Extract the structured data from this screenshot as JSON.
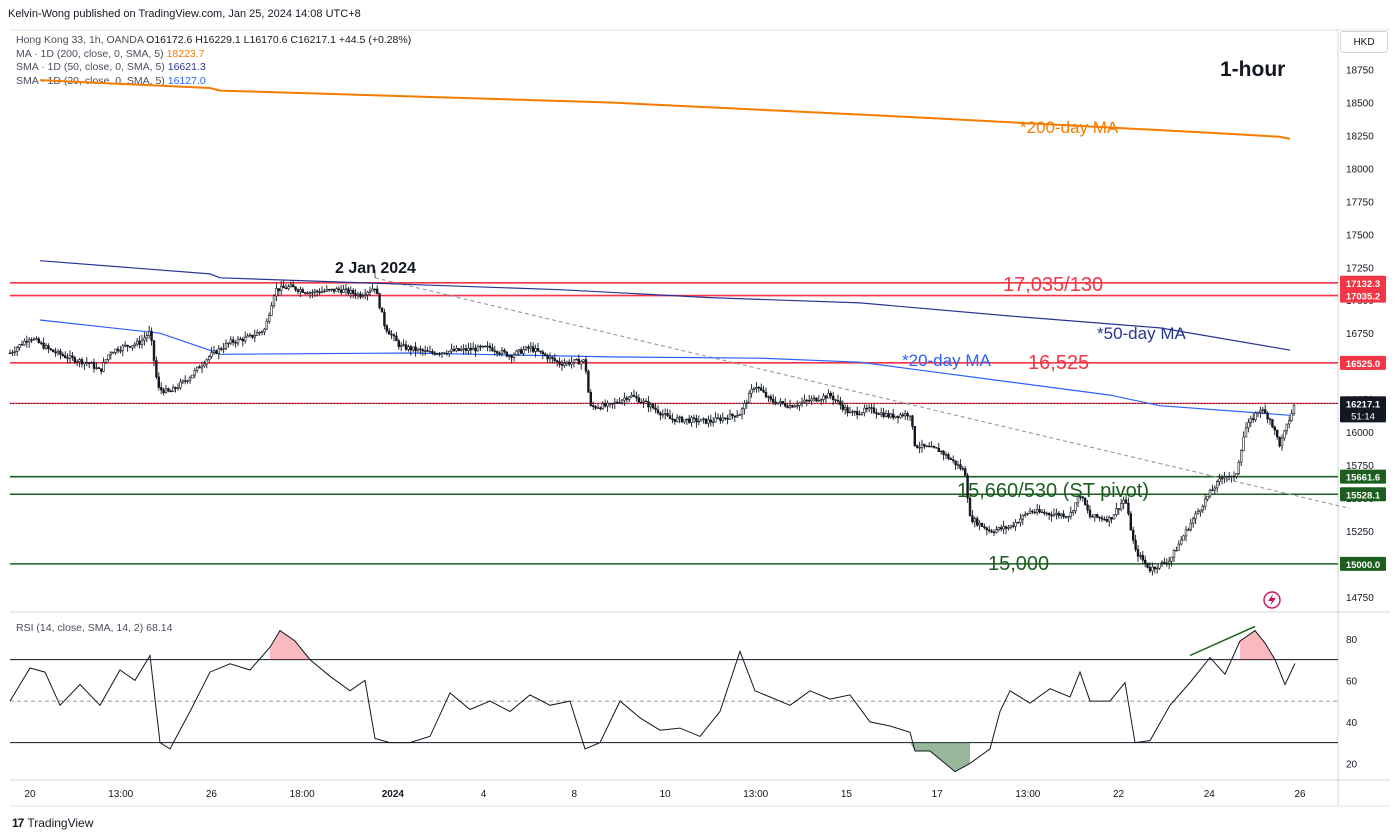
{
  "header": {
    "publisher": "Kelvin-Wong published on TradingView.com, Jan 25, 2024 14:08 UTC+8",
    "currency": "HKD",
    "timeframe_label": "1-hour"
  },
  "legend": {
    "instrument": "Hong Kong 33, 1h, OANDA",
    "ohlc": "O16172.6  H16229.1  L16170.6  C16217.1  +44.5 (+0.28%)",
    "ma200_label": "MA · 1D (200, close, 0, SMA, 5)",
    "ma200_value": "18223.7",
    "ma50_label": "SMA · 1D (50, close, 0, SMA, 5)",
    "ma50_value": "16621.3",
    "ma20_label": "SMA · 1D (20, close, 0, SMA, 5)",
    "ma20_value": "16127.0",
    "rsi_label": "RSI (14, close, SMA, 14, 2)",
    "rsi_value": "68.14"
  },
  "footer": {
    "brand": "TradingView"
  },
  "colors": {
    "orange": "#f57c00",
    "navy": "#283593",
    "blue": "#2962ff",
    "red": "#f23645",
    "green": "#1b5e20",
    "candle": "#131722",
    "rsi": "#131722"
  },
  "chart_data": [
    {
      "type": "candlestick",
      "title": "Hong Kong 33, 1h, OANDA",
      "ylim": [
        14650,
        19050
      ],
      "y_ticks": [
        14750,
        15000,
        15250,
        15500,
        15750,
        16000,
        16250,
        16500,
        16750,
        17000,
        17250,
        17500,
        17750,
        18000,
        18250,
        18500,
        18750
      ],
      "x_ticks": [
        "20",
        "13:00",
        "26",
        "18:00",
        "2024",
        "4",
        "8",
        "10",
        "13:00",
        "15",
        "17",
        "13:00",
        "22",
        "24",
        "26"
      ],
      "price_path": [
        [
          0,
          16600
        ],
        [
          0.02,
          16720
        ],
        [
          0.04,
          16620
        ],
        [
          0.06,
          16560
        ],
        [
          0.08,
          16520
        ],
        [
          0.09,
          16460
        ],
        [
          0.1,
          16610
        ],
        [
          0.115,
          16650
        ],
        [
          0.13,
          16680
        ],
        [
          0.14,
          16760
        ],
        [
          0.148,
          16330
        ],
        [
          0.16,
          16300
        ],
        [
          0.18,
          16420
        ],
        [
          0.2,
          16580
        ],
        [
          0.22,
          16680
        ],
        [
          0.24,
          16720
        ],
        [
          0.255,
          16780
        ],
        [
          0.265,
          17080
        ],
        [
          0.28,
          17100
        ],
        [
          0.3,
          17060
        ],
        [
          0.33,
          17080
        ],
        [
          0.35,
          17040
        ],
        [
          0.365,
          17100
        ],
        [
          0.375,
          16800
        ],
        [
          0.39,
          16650
        ],
        [
          0.42,
          16600
        ],
        [
          0.45,
          16620
        ],
        [
          0.48,
          16640
        ],
        [
          0.5,
          16580
        ],
        [
          0.52,
          16640
        ],
        [
          0.55,
          16520
        ],
        [
          0.575,
          16540
        ],
        [
          0.58,
          16190
        ],
        [
          0.6,
          16200
        ],
        [
          0.62,
          16280
        ],
        [
          0.64,
          16200
        ],
        [
          0.66,
          16100
        ],
        [
          0.7,
          16080
        ],
        [
          0.73,
          16140
        ],
        [
          0.745,
          16360
        ],
        [
          0.76,
          16240
        ],
        [
          0.78,
          16200
        ],
        [
          0.8,
          16240
        ],
        [
          0.82,
          16280
        ],
        [
          0.84,
          16140
        ],
        [
          0.86,
          16170
        ],
        [
          0.88,
          16120
        ],
        [
          0.9,
          16140
        ],
        [
          0.905,
          15900
        ],
        [
          0.93,
          15860
        ],
        [
          0.955,
          15700
        ],
        [
          0.96,
          15350
        ],
        [
          0.98,
          15250
        ],
        [
          1.0,
          15280
        ],
        [
          1.02,
          15400
        ],
        [
          1.04,
          15380
        ],
        [
          1.06,
          15370
        ],
        [
          1.07,
          15530
        ],
        [
          1.08,
          15360
        ],
        [
          1.1,
          15340
        ],
        [
          1.115,
          15500
        ],
        [
          1.125,
          15100
        ],
        [
          1.14,
          14960
        ],
        [
          1.16,
          15030
        ],
        [
          1.18,
          15300
        ],
        [
          1.2,
          15540
        ],
        [
          1.215,
          15680
        ],
        [
          1.225,
          15640
        ],
        [
          1.235,
          16020
        ],
        [
          1.25,
          16180
        ],
        [
          1.26,
          16100
        ],
        [
          1.27,
          15900
        ],
        [
          1.285,
          16217.1
        ]
      ],
      "levels": [
        {
          "label": "17132.3",
          "value": 17132.3,
          "color": "#f23645"
        },
        {
          "label": "17035.2",
          "value": 17035.2,
          "color": "#f23645"
        },
        {
          "label": "16525.0",
          "value": 16525.0,
          "color": "#f23645"
        },
        {
          "label": "16217.3",
          "value": 16217.3,
          "color": "#f23645"
        },
        {
          "label": "15661.6",
          "value": 15661.6,
          "color": "#1b5e20"
        },
        {
          "label": "15528.1",
          "value": 15528.1,
          "color": "#1b5e20"
        },
        {
          "label": "15000.0",
          "value": 15000.0,
          "color": "#1b5e20"
        }
      ],
      "last_price": {
        "label": "16217.1",
        "countdown": "51:14"
      },
      "ma200": [
        [
          0.03,
          18670
        ],
        [
          0.2,
          18610
        ],
        [
          0.21,
          18590
        ],
        [
          0.6,
          18500
        ],
        [
          0.9,
          18390
        ],
        [
          1.2,
          18270
        ],
        [
          1.27,
          18240
        ],
        [
          1.28,
          18223.7
        ]
      ],
      "ma50": [
        [
          0.03,
          17300
        ],
        [
          0.2,
          17200
        ],
        [
          0.21,
          17170
        ],
        [
          0.55,
          17080
        ],
        [
          0.7,
          17020
        ],
        [
          0.85,
          16980
        ],
        [
          1.0,
          16880
        ],
        [
          1.15,
          16790
        ],
        [
          1.28,
          16621.3
        ]
      ],
      "ma20": [
        [
          0.03,
          16850
        ],
        [
          0.15,
          16750
        ],
        [
          0.2,
          16620
        ],
        [
          0.21,
          16590
        ],
        [
          0.4,
          16600
        ],
        [
          0.6,
          16570
        ],
        [
          0.75,
          16560
        ],
        [
          0.85,
          16530
        ],
        [
          0.9,
          16480
        ],
        [
          1.0,
          16380
        ],
        [
          1.1,
          16280
        ],
        [
          1.15,
          16200
        ],
        [
          1.28,
          16127.0
        ]
      ],
      "trendline": {
        "from": [
          0.365,
          17170
        ],
        "to": [
          1.34,
          15420
        ]
      },
      "annotations": [
        {
          "text": "2 Jan 2024",
          "color": "#131722"
        },
        {
          "text": "*200-day MA",
          "color": "#f57c00"
        },
        {
          "text": "17,035/130",
          "color": "#f23645"
        },
        {
          "text": "*50-day MA",
          "color": "#283593"
        },
        {
          "text": "*20-day MA",
          "color": "#2962ff"
        },
        {
          "text": "16,525",
          "color": "#f23645"
        },
        {
          "text": "15,660/530 (ST pivot)",
          "color": "#1b5e20"
        },
        {
          "text": "15,000",
          "color": "#1b5e20"
        }
      ]
    },
    {
      "type": "line",
      "title": "RSI (14, close, SMA, 14, 2)",
      "ylim": [
        12,
        92
      ],
      "y_ticks": [
        20,
        40,
        60,
        80
      ],
      "bands": {
        "upper": 70,
        "middle": 50,
        "lower": 30
      },
      "rsi_path": [
        [
          0,
          50
        ],
        [
          0.02,
          66
        ],
        [
          0.035,
          64
        ],
        [
          0.05,
          48
        ],
        [
          0.07,
          58
        ],
        [
          0.09,
          48
        ],
        [
          0.11,
          65
        ],
        [
          0.125,
          60
        ],
        [
          0.14,
          72
        ],
        [
          0.15,
          30
        ],
        [
          0.16,
          27
        ],
        [
          0.18,
          45
        ],
        [
          0.2,
          64
        ],
        [
          0.22,
          68
        ],
        [
          0.24,
          65
        ],
        [
          0.26,
          76
        ],
        [
          0.27,
          84
        ],
        [
          0.285,
          79
        ],
        [
          0.3,
          70
        ],
        [
          0.32,
          62
        ],
        [
          0.34,
          55
        ],
        [
          0.355,
          60
        ],
        [
          0.365,
          32
        ],
        [
          0.38,
          30
        ],
        [
          0.4,
          30
        ],
        [
          0.42,
          33
        ],
        [
          0.44,
          54
        ],
        [
          0.46,
          46
        ],
        [
          0.48,
          50
        ],
        [
          0.5,
          45
        ],
        [
          0.52,
          53
        ],
        [
          0.54,
          48
        ],
        [
          0.56,
          50
        ],
        [
          0.575,
          27
        ],
        [
          0.59,
          30
        ],
        [
          0.61,
          50
        ],
        [
          0.63,
          42
        ],
        [
          0.65,
          36
        ],
        [
          0.67,
          37
        ],
        [
          0.69,
          33
        ],
        [
          0.71,
          45
        ],
        [
          0.73,
          74
        ],
        [
          0.745,
          55
        ],
        [
          0.76,
          52
        ],
        [
          0.78,
          48
        ],
        [
          0.8,
          55
        ],
        [
          0.82,
          51
        ],
        [
          0.84,
          53
        ],
        [
          0.86,
          40
        ],
        [
          0.88,
          38
        ],
        [
          0.9,
          35
        ],
        [
          0.905,
          26
        ],
        [
          0.92,
          26
        ],
        [
          0.935,
          20
        ],
        [
          0.945,
          16
        ],
        [
          0.96,
          20
        ],
        [
          0.98,
          27
        ],
        [
          0.99,
          45
        ],
        [
          1.0,
          55
        ],
        [
          1.02,
          49
        ],
        [
          1.04,
          56
        ],
        [
          1.06,
          52
        ],
        [
          1.07,
          64
        ],
        [
          1.08,
          50
        ],
        [
          1.1,
          50
        ],
        [
          1.115,
          59
        ],
        [
          1.125,
          30
        ],
        [
          1.14,
          31
        ],
        [
          1.16,
          48
        ],
        [
          1.18,
          59
        ],
        [
          1.2,
          71
        ],
        [
          1.215,
          63
        ],
        [
          1.23,
          79
        ],
        [
          1.245,
          84
        ],
        [
          1.255,
          78
        ],
        [
          1.265,
          70
        ],
        [
          1.275,
          58
        ],
        [
          1.285,
          68.14
        ]
      ]
    }
  ]
}
